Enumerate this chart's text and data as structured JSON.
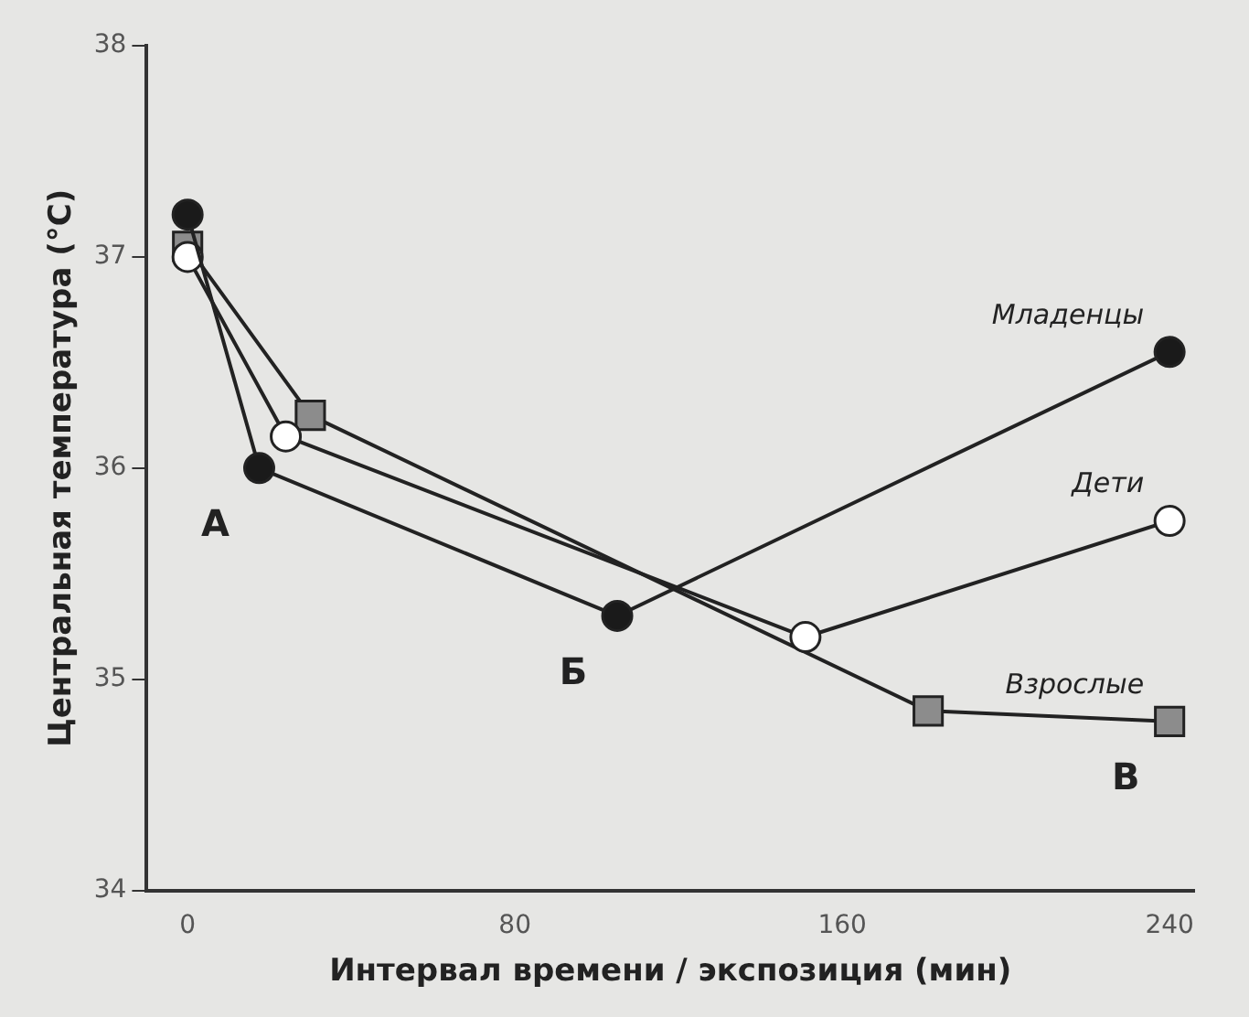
{
  "chart_data": {
    "type": "line",
    "xlabel": "Интервал времени / экспозиция (мин)",
    "ylabel": "Центральная температура (°C)",
    "xlim": [
      -10,
      246
    ],
    "xticks": [
      0,
      80,
      160,
      240
    ],
    "ylim": [
      34,
      38
    ],
    "yticks": [
      34,
      35,
      36,
      37,
      38
    ],
    "grid": false,
    "legend": false,
    "series": [
      {
        "name": "Младенцы",
        "color": "#1a1a1a",
        "marker": "circle",
        "x": [
          0,
          17.5,
          105,
          240
        ],
        "values": [
          37.2,
          36.0,
          35.3,
          36.55
        ]
      },
      {
        "name": "Дети",
        "color": "#ffffff",
        "marker": "circle",
        "x": [
          0,
          24,
          151,
          240
        ],
        "values": [
          37.0,
          36.15,
          35.2,
          35.75
        ]
      },
      {
        "name": "Взрослые",
        "color": "#8c8c8c",
        "marker": "square",
        "x": [
          0,
          30,
          181,
          240
        ],
        "values": [
          37.05,
          36.25,
          34.85,
          34.8
        ]
      }
    ],
    "annotations": [
      {
        "text": "А",
        "x": 17.5,
        "y": 36.0
      },
      {
        "text": "Б",
        "x": 105,
        "y": 35.3
      },
      {
        "text": "В",
        "x": 240,
        "y": 34.8
      }
    ]
  }
}
